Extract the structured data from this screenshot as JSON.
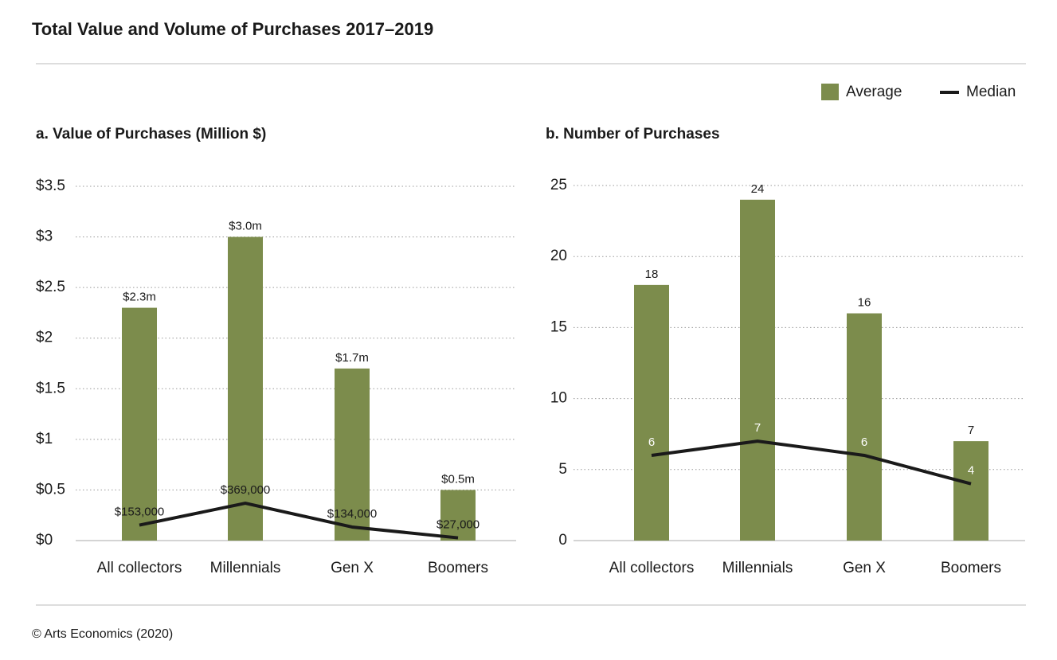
{
  "title": "Total Value and Volume of Purchases 2017–2019",
  "source": "© Arts Economics (2020)",
  "chart_data": [
    {
      "type": "combo",
      "title": "a. Value of Purchases (Million $)",
      "categories": [
        "All collectors",
        "Millennials",
        "Gen X",
        "Boomers"
      ],
      "ylim": [
        0,
        3.5
      ],
      "yticks": [
        {
          "value": 0,
          "label": "$0"
        },
        {
          "value": 0.5,
          "label": "$0.5"
        },
        {
          "value": 1,
          "label": "$1"
        },
        {
          "value": 1.5,
          "label": "$1.5"
        },
        {
          "value": 2,
          "label": "$2"
        },
        {
          "value": 2.5,
          "label": "$2.5"
        },
        {
          "value": 3,
          "label": "$3"
        },
        {
          "value": 3.5,
          "label": "$3.5"
        }
      ],
      "grid": true,
      "series": [
        {
          "name": "Average",
          "type": "bar",
          "color": "#7c8c4c",
          "values": [
            2.3,
            3.0,
            1.7,
            0.5
          ],
          "value_labels": [
            "$2.3m",
            "$3.0m",
            "$1.7m",
            "$0.5m"
          ]
        },
        {
          "name": "Median",
          "type": "line",
          "color": "#1a1a1a",
          "values": [
            0.153,
            0.369,
            0.134,
            0.027
          ],
          "value_labels": [
            "$153,000",
            "$369,000",
            "$134,000",
            "$27,000"
          ]
        }
      ]
    },
    {
      "type": "combo",
      "title": "b. Number of Purchases",
      "categories": [
        "All collectors",
        "Millennials",
        "Gen X",
        "Boomers"
      ],
      "ylim": [
        0,
        25
      ],
      "yticks": [
        0,
        5,
        10,
        15,
        20,
        25
      ],
      "grid": true,
      "series": [
        {
          "name": "Average",
          "type": "bar",
          "color": "#7c8c4c",
          "values": [
            18,
            24,
            16,
            7
          ]
        },
        {
          "name": "Median",
          "type": "line",
          "color": "#1a1a1a",
          "values": [
            6,
            7,
            6,
            4
          ]
        }
      ]
    }
  ]
}
